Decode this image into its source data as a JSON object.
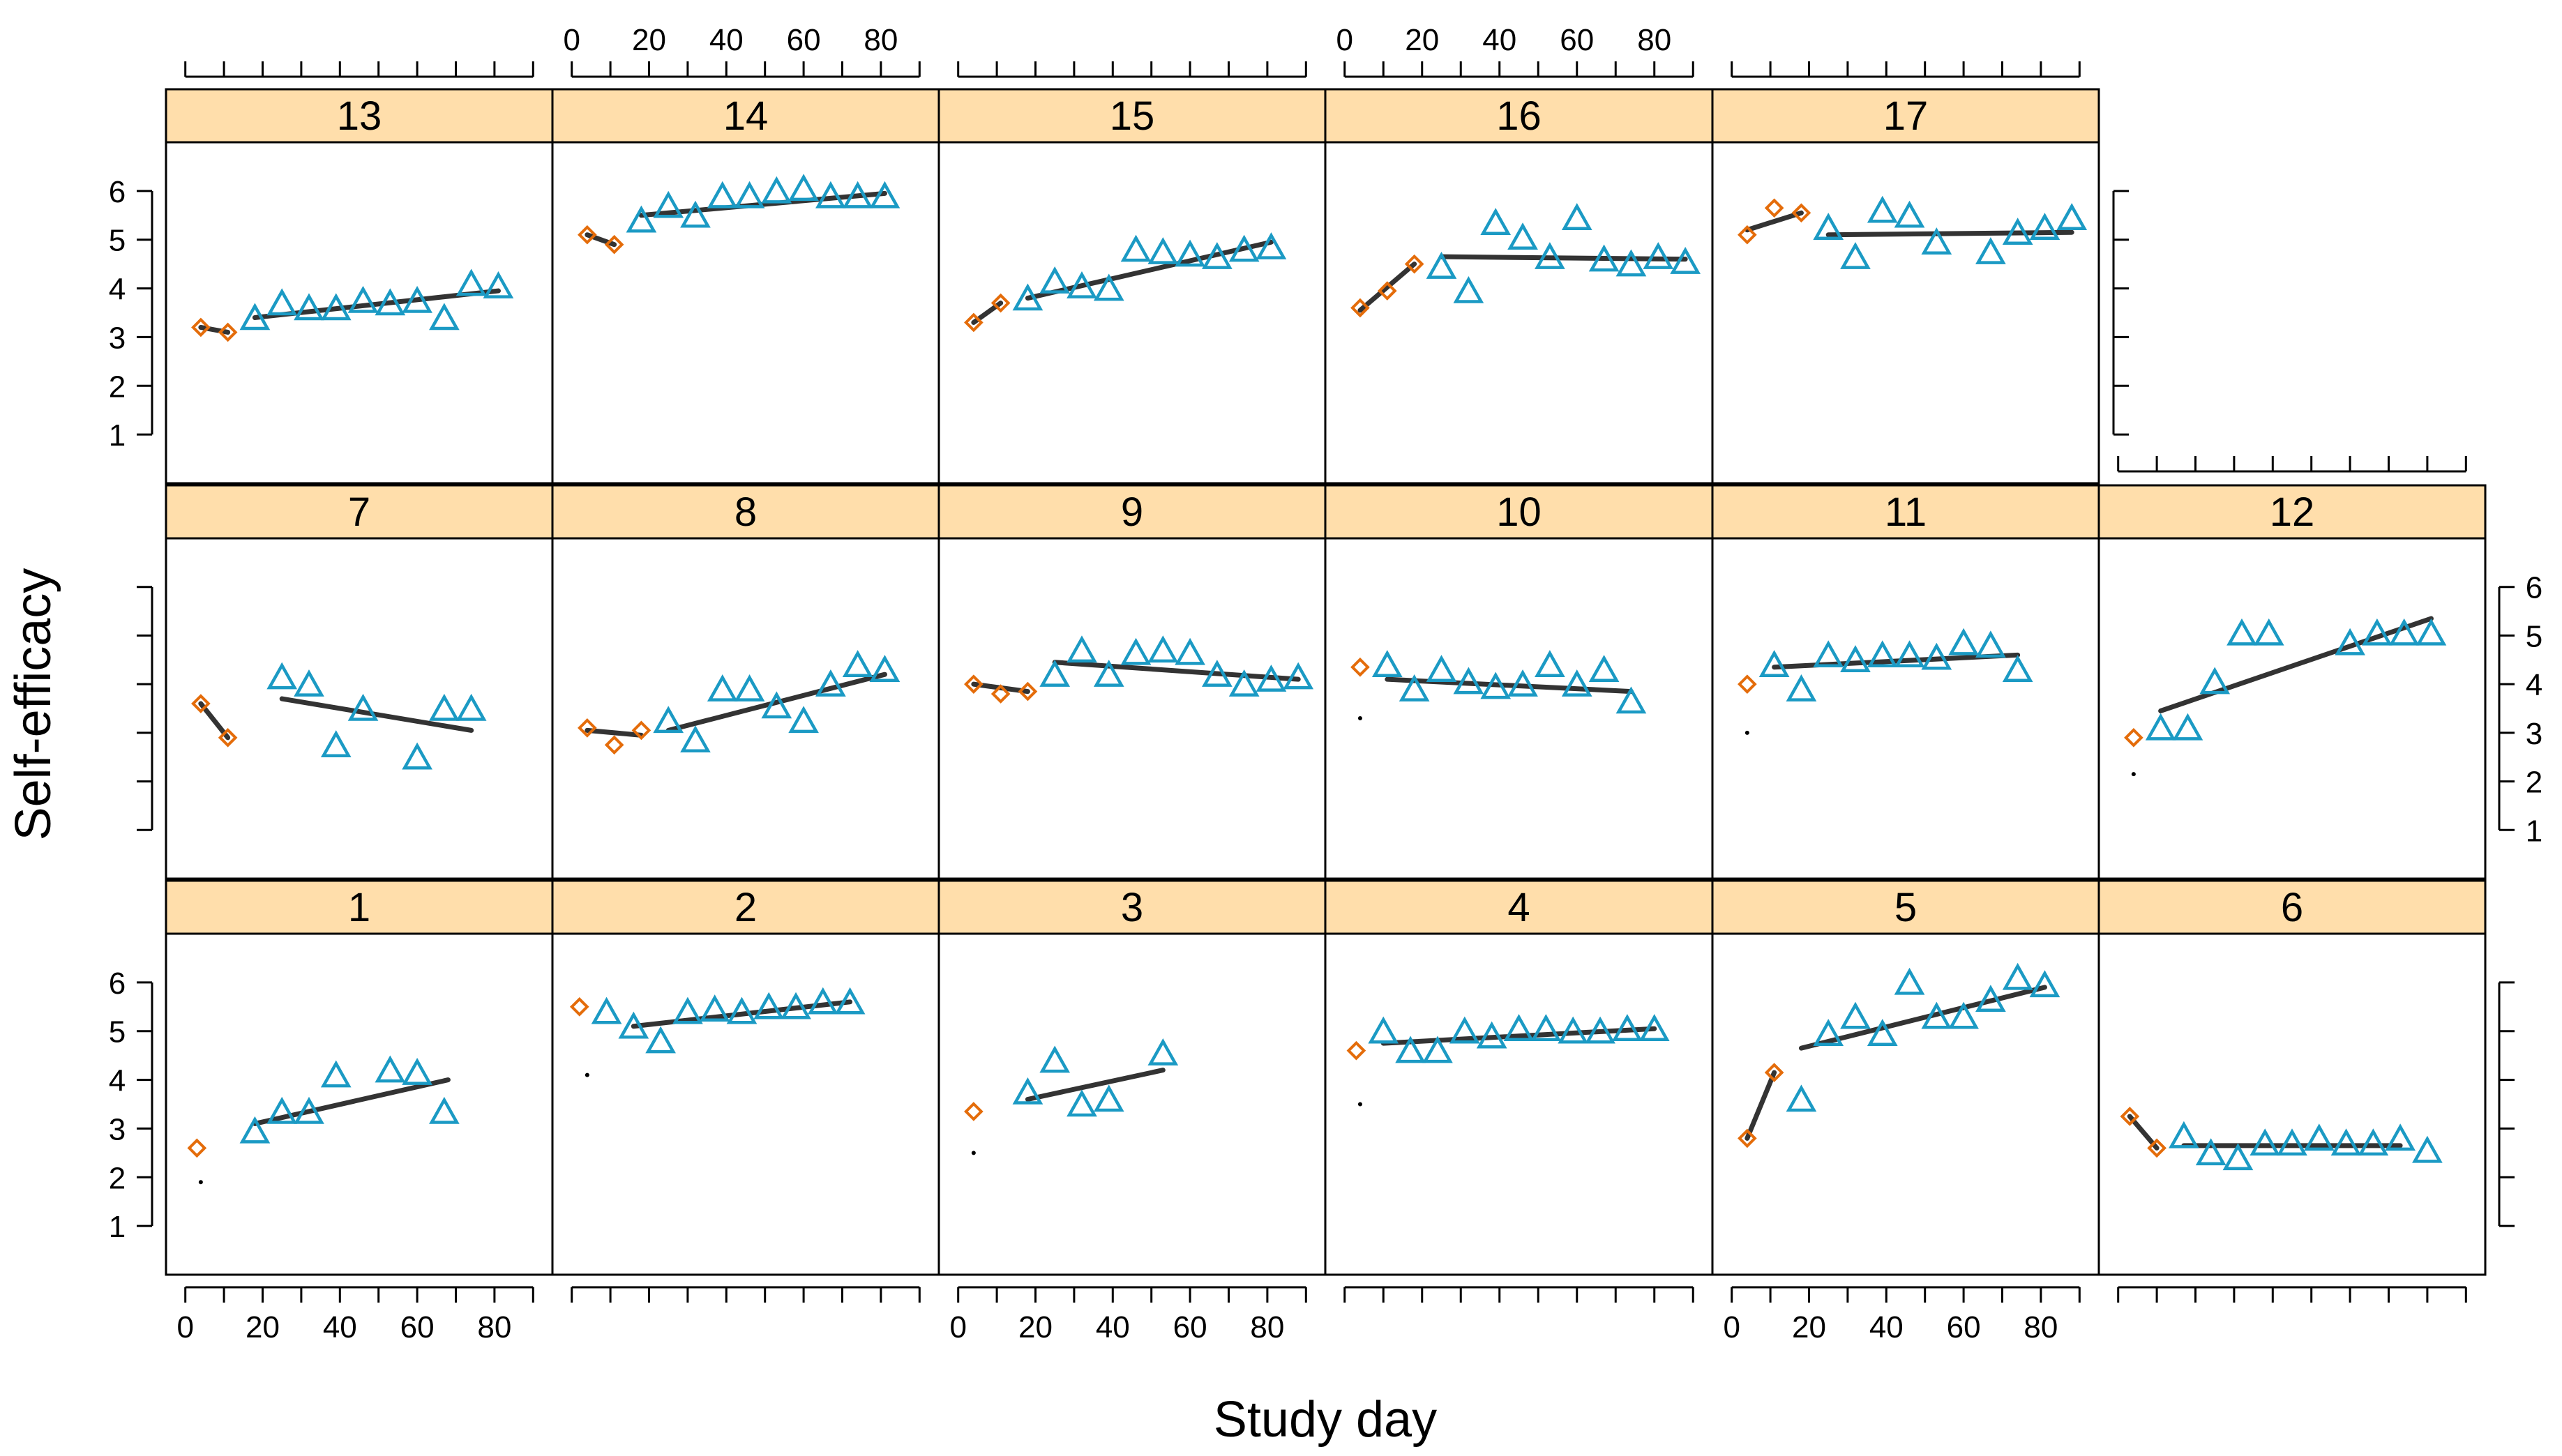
{
  "chart_data": {
    "type": "scatter",
    "xlabel": "Study day",
    "ylabel": "Self-efficacy",
    "xlim": [
      -5,
      95
    ],
    "ylim": [
      0,
      7
    ],
    "x_ticks": [
      0,
      20,
      40,
      60,
      80
    ],
    "y_ticks": [
      1,
      2,
      3,
      4,
      5,
      6
    ],
    "colors": {
      "baseline": "#E46C0A",
      "intervention": "#1B9AC4",
      "fit": "#333333",
      "strip": "#FFDEAB"
    },
    "panels": [
      {
        "label": "1",
        "baseline": [
          [
            3,
            2.6
          ]
        ],
        "intervention": [
          [
            18,
            2.9
          ],
          [
            25,
            3.3
          ],
          [
            32,
            3.3
          ],
          [
            39,
            4.05
          ],
          [
            53,
            4.15
          ],
          [
            60,
            4.1
          ],
          [
            67,
            3.3
          ]
        ],
        "baseline_fit": [],
        "intervention_fit": [
          [
            18,
            3.1
          ],
          [
            68,
            4.0
          ]
        ],
        "dot": [
          4,
          1.9
        ]
      },
      {
        "label": "2",
        "baseline": [
          [
            2,
            5.5
          ]
        ],
        "intervention": [
          [
            9,
            5.35
          ],
          [
            16,
            5.05
          ],
          [
            23,
            4.75
          ],
          [
            30,
            5.35
          ],
          [
            37,
            5.4
          ],
          [
            44,
            5.35
          ],
          [
            51,
            5.45
          ],
          [
            58,
            5.45
          ],
          [
            65,
            5.55
          ],
          [
            72,
            5.55
          ]
        ],
        "baseline_fit": [],
        "intervention_fit": [
          [
            16,
            5.1
          ],
          [
            72,
            5.6
          ]
        ],
        "dot": [
          4,
          4.1
        ]
      },
      {
        "label": "3",
        "baseline": [
          [
            4,
            3.35
          ]
        ],
        "intervention": [
          [
            18,
            3.7
          ],
          [
            25,
            4.35
          ],
          [
            32,
            3.45
          ],
          [
            39,
            3.55
          ],
          [
            53,
            4.5
          ]
        ],
        "baseline_fit": [],
        "intervention_fit": [
          [
            18,
            3.6
          ],
          [
            53,
            4.2
          ]
        ],
        "dot": [
          4,
          2.5
        ]
      },
      {
        "label": "4",
        "baseline": [
          [
            3,
            4.6
          ]
        ],
        "intervention": [
          [
            10,
            4.95
          ],
          [
            17,
            4.55
          ],
          [
            24,
            4.55
          ],
          [
            31,
            4.95
          ],
          [
            38,
            4.85
          ],
          [
            45,
            5.0
          ],
          [
            52,
            5.0
          ],
          [
            59,
            4.95
          ],
          [
            66,
            4.95
          ],
          [
            73,
            5.0
          ],
          [
            80,
            5.0
          ]
        ],
        "baseline_fit": [],
        "intervention_fit": [
          [
            10,
            4.75
          ],
          [
            80,
            5.05
          ]
        ],
        "dot": [
          4,
          3.5
        ]
      },
      {
        "label": "5",
        "baseline": [
          [
            4,
            2.8
          ],
          [
            11,
            4.15
          ]
        ],
        "intervention": [
          [
            18,
            3.55
          ],
          [
            25,
            4.9
          ],
          [
            32,
            5.25
          ],
          [
            39,
            4.9
          ],
          [
            46,
            5.95
          ],
          [
            53,
            5.25
          ],
          [
            60,
            5.25
          ],
          [
            67,
            5.6
          ],
          [
            74,
            6.05
          ],
          [
            81,
            5.9
          ]
        ],
        "baseline_fit": [
          [
            4,
            2.8
          ],
          [
            11,
            4.15
          ]
        ],
        "intervention_fit": [
          [
            18,
            4.65
          ],
          [
            81,
            5.9
          ]
        ],
        "dot": null
      },
      {
        "label": "6",
        "baseline": [
          [
            3,
            3.25
          ],
          [
            10,
            2.6
          ]
        ],
        "intervention": [
          [
            17,
            2.8
          ],
          [
            24,
            2.45
          ],
          [
            31,
            2.35
          ],
          [
            38,
            2.65
          ],
          [
            45,
            2.65
          ],
          [
            52,
            2.75
          ],
          [
            59,
            2.65
          ],
          [
            66,
            2.65
          ],
          [
            73,
            2.75
          ],
          [
            80,
            2.5
          ]
        ],
        "baseline_fit": [
          [
            3,
            3.25
          ],
          [
            10,
            2.6
          ]
        ],
        "intervention_fit": [
          [
            17,
            2.65
          ],
          [
            73,
            2.65
          ]
        ],
        "dot": null
      },
      {
        "label": "7",
        "baseline": [
          [
            4,
            3.6
          ],
          [
            11,
            2.9
          ]
        ],
        "intervention": [
          [
            25,
            4.1
          ],
          [
            32,
            3.95
          ],
          [
            39,
            2.7
          ],
          [
            46,
            3.45
          ],
          [
            60,
            2.45
          ],
          [
            67,
            3.45
          ],
          [
            74,
            3.45
          ]
        ],
        "baseline_fit": [
          [
            4,
            3.6
          ],
          [
            11,
            2.9
          ]
        ],
        "intervention_fit": [
          [
            25,
            3.7
          ],
          [
            74,
            3.05
          ]
        ],
        "dot": null
      },
      {
        "label": "8",
        "baseline": [
          [
            4,
            3.1
          ],
          [
            11,
            2.75
          ],
          [
            18,
            3.05
          ]
        ],
        "intervention": [
          [
            25,
            3.2
          ],
          [
            32,
            2.8
          ],
          [
            39,
            3.85
          ],
          [
            46,
            3.85
          ],
          [
            53,
            3.5
          ],
          [
            60,
            3.2
          ],
          [
            67,
            3.95
          ],
          [
            74,
            4.35
          ],
          [
            81,
            4.25
          ]
        ],
        "baseline_fit": [
          [
            4,
            3.05
          ],
          [
            18,
            2.95
          ]
        ],
        "intervention_fit": [
          [
            25,
            3.05
          ],
          [
            81,
            4.2
          ]
        ],
        "dot": null
      },
      {
        "label": "9",
        "baseline": [
          [
            4,
            4.0
          ],
          [
            11,
            3.8
          ],
          [
            18,
            3.85
          ]
        ],
        "intervention": [
          [
            25,
            4.15
          ],
          [
            32,
            4.65
          ],
          [
            39,
            4.15
          ],
          [
            46,
            4.6
          ],
          [
            53,
            4.65
          ],
          [
            60,
            4.6
          ],
          [
            67,
            4.15
          ],
          [
            74,
            3.95
          ],
          [
            81,
            4.05
          ],
          [
            88,
            4.1
          ]
        ],
        "baseline_fit": [
          [
            4,
            4.0
          ],
          [
            18,
            3.85
          ]
        ],
        "intervention_fit": [
          [
            25,
            4.45
          ],
          [
            88,
            4.1
          ]
        ],
        "dot": null
      },
      {
        "label": "10",
        "baseline": [
          [
            4,
            4.35
          ]
        ],
        "intervention": [
          [
            11,
            4.35
          ],
          [
            18,
            3.85
          ],
          [
            25,
            4.25
          ],
          [
            32,
            4.0
          ],
          [
            39,
            3.9
          ],
          [
            46,
            3.95
          ],
          [
            53,
            4.35
          ],
          [
            60,
            3.95
          ],
          [
            67,
            4.25
          ],
          [
            74,
            3.6
          ]
        ],
        "baseline_fit": [],
        "intervention_fit": [
          [
            11,
            4.1
          ],
          [
            74,
            3.85
          ]
        ],
        "dot": [
          4,
          3.3
        ]
      },
      {
        "label": "11",
        "baseline": [
          [
            4,
            4.0
          ]
        ],
        "intervention": [
          [
            11,
            4.35
          ],
          [
            18,
            3.85
          ],
          [
            25,
            4.55
          ],
          [
            32,
            4.45
          ],
          [
            39,
            4.55
          ],
          [
            46,
            4.55
          ],
          [
            53,
            4.5
          ],
          [
            60,
            4.8
          ],
          [
            67,
            4.75
          ],
          [
            74,
            4.25
          ]
        ],
        "baseline_fit": [],
        "intervention_fit": [
          [
            11,
            4.35
          ],
          [
            74,
            4.6
          ]
        ],
        "dot": [
          4,
          3.0
        ]
      },
      {
        "label": "12",
        "baseline": [
          [
            4,
            2.9
          ]
        ],
        "intervention": [
          [
            11,
            3.05
          ],
          [
            18,
            3.05
          ],
          [
            25,
            4.0
          ],
          [
            32,
            5.0
          ],
          [
            39,
            5.0
          ],
          [
            60,
            4.8
          ],
          [
            67,
            5.0
          ],
          [
            74,
            5.0
          ],
          [
            81,
            5.0
          ]
        ],
        "baseline_fit": [],
        "intervention_fit": [
          [
            11,
            3.45
          ],
          [
            81,
            5.35
          ]
        ],
        "dot": [
          4,
          2.15
        ]
      },
      {
        "label": "13",
        "baseline": [
          [
            4,
            3.2
          ],
          [
            11,
            3.1
          ]
        ],
        "intervention": [
          [
            18,
            3.35
          ],
          [
            25,
            3.65
          ],
          [
            32,
            3.55
          ],
          [
            39,
            3.55
          ],
          [
            46,
            3.7
          ],
          [
            53,
            3.65
          ],
          [
            60,
            3.7
          ],
          [
            67,
            3.35
          ],
          [
            74,
            4.05
          ],
          [
            81,
            4.0
          ]
        ],
        "baseline_fit": [
          [
            4,
            3.2
          ],
          [
            11,
            3.1
          ]
        ],
        "intervention_fit": [
          [
            18,
            3.4
          ],
          [
            81,
            3.95
          ]
        ],
        "dot": null
      },
      {
        "label": "14",
        "baseline": [
          [
            4,
            5.1
          ],
          [
            11,
            4.9
          ]
        ],
        "intervention": [
          [
            18,
            5.35
          ],
          [
            25,
            5.65
          ],
          [
            32,
            5.45
          ],
          [
            39,
            5.85
          ],
          [
            46,
            5.85
          ],
          [
            53,
            5.95
          ],
          [
            60,
            6.0
          ],
          [
            67,
            5.85
          ],
          [
            74,
            5.85
          ],
          [
            81,
            5.85
          ]
        ],
        "baseline_fit": [
          [
            4,
            5.1
          ],
          [
            11,
            4.9
          ]
        ],
        "intervention_fit": [
          [
            18,
            5.5
          ],
          [
            81,
            5.95
          ]
        ],
        "dot": null
      },
      {
        "label": "15",
        "baseline": [
          [
            4,
            3.3
          ],
          [
            11,
            3.7
          ]
        ],
        "intervention": [
          [
            18,
            3.75
          ],
          [
            25,
            4.1
          ],
          [
            32,
            4.0
          ],
          [
            39,
            3.95
          ],
          [
            46,
            4.75
          ],
          [
            53,
            4.7
          ],
          [
            60,
            4.65
          ],
          [
            67,
            4.6
          ],
          [
            74,
            4.75
          ],
          [
            81,
            4.8
          ]
        ],
        "baseline_fit": [
          [
            4,
            3.3
          ],
          [
            11,
            3.7
          ]
        ],
        "intervention_fit": [
          [
            18,
            3.8
          ],
          [
            81,
            4.95
          ]
        ],
        "dot": null
      },
      {
        "label": "16",
        "baseline": [
          [
            4,
            3.6
          ],
          [
            11,
            3.95
          ],
          [
            18,
            4.5
          ]
        ],
        "intervention": [
          [
            25,
            4.4
          ],
          [
            32,
            3.9
          ],
          [
            39,
            5.3
          ],
          [
            46,
            5.0
          ],
          [
            53,
            4.6
          ],
          [
            60,
            5.4
          ],
          [
            67,
            4.55
          ],
          [
            74,
            4.45
          ],
          [
            81,
            4.6
          ],
          [
            88,
            4.5
          ]
        ],
        "baseline_fit": [
          [
            4,
            3.55
          ],
          [
            18,
            4.5
          ]
        ],
        "intervention_fit": [
          [
            25,
            4.65
          ],
          [
            88,
            4.6
          ]
        ],
        "dot": null
      },
      {
        "label": "17",
        "baseline": [
          [
            4,
            5.1
          ],
          [
            11,
            5.65
          ],
          [
            18,
            5.55
          ]
        ],
        "intervention": [
          [
            25,
            5.2
          ],
          [
            32,
            4.6
          ],
          [
            39,
            5.55
          ],
          [
            46,
            5.45
          ],
          [
            53,
            4.9
          ],
          [
            67,
            4.7
          ],
          [
            74,
            5.1
          ],
          [
            81,
            5.2
          ],
          [
            88,
            5.4
          ]
        ],
        "baseline_fit": [
          [
            4,
            5.2
          ],
          [
            18,
            5.55
          ]
        ],
        "intervention_fit": [
          [
            25,
            5.1
          ],
          [
            88,
            5.15
          ]
        ],
        "dot": null
      }
    ]
  }
}
